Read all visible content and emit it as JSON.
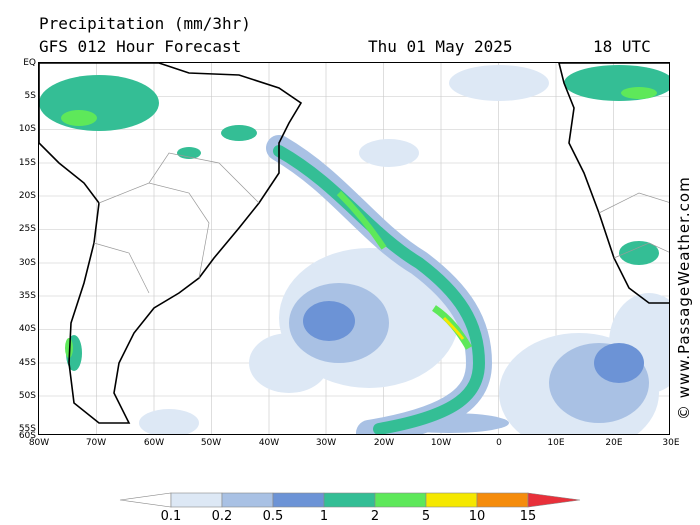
{
  "header": {
    "title": "Precipitation (mm/3hr)",
    "model": "GFS 012 Hour Forecast",
    "date": "Thu 01 May 2025",
    "time": "18 UTC"
  },
  "map": {
    "lat_labels": [
      "EQ",
      "5S",
      "10S",
      "15S",
      "20S",
      "25S",
      "30S",
      "35S",
      "40S",
      "45S",
      "50S",
      "55S",
      "60S"
    ],
    "lon_labels": [
      "80W",
      "70W",
      "60W",
      "50W",
      "40W",
      "30W",
      "20W",
      "10W",
      "0",
      "10E",
      "20E",
      "30E"
    ],
    "extent": {
      "lon_min": -80,
      "lon_max": 30,
      "lat_min": -60,
      "lat_max": 0
    }
  },
  "legend": {
    "labels": [
      "0.1",
      "0.2",
      "0.5",
      "1",
      "2",
      "5",
      "10",
      "15"
    ],
    "colors": [
      "#ffffff",
      "#dde8f5",
      "#a9c1e4",
      "#6c93d6",
      "#34be95",
      "#5ee85a",
      "#f5e800",
      "#f58c0c",
      "#e8303a"
    ]
  },
  "copyright": "© www.PassageWeather.com"
}
